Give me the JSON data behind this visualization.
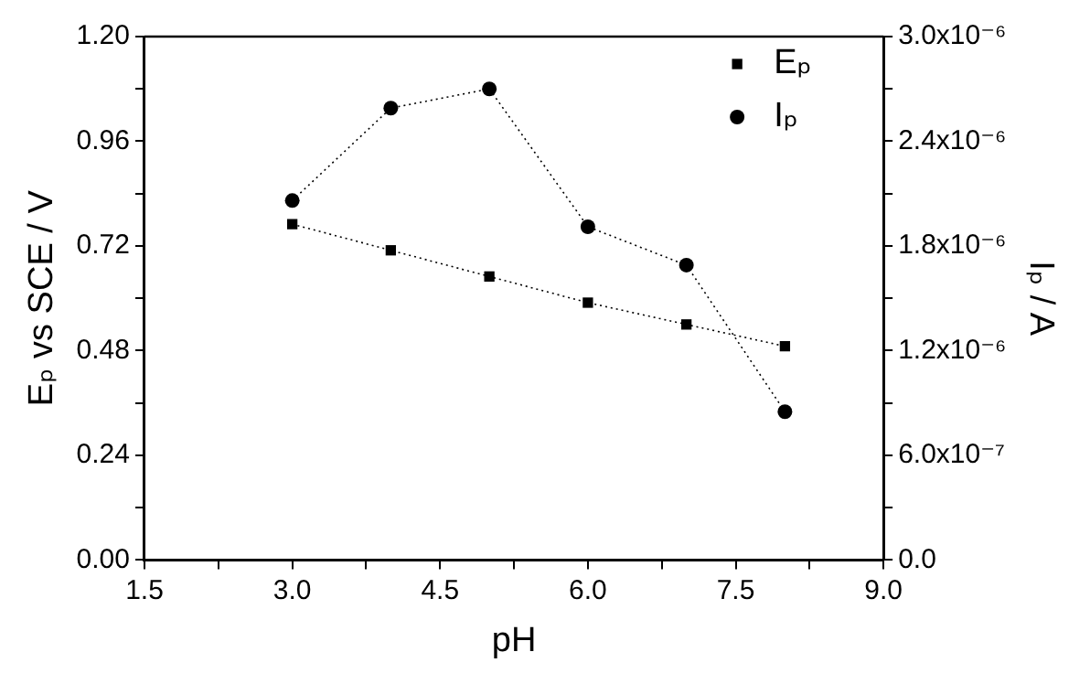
{
  "chart_data": {
    "type": "line",
    "xlabel": "pH",
    "ylabel": "Eₚ vs SCE / V",
    "y2label": "Iₚ / A",
    "x": [
      3,
      4,
      5,
      6,
      7,
      8
    ],
    "series": [
      {
        "name": "Eₚ",
        "color": "#000000",
        "marker": "square",
        "values": [
          0.77,
          0.71,
          0.65,
          0.59,
          0.54,
          0.49
        ]
      },
      {
        "name": "Iₚ",
        "color": "#000000",
        "marker": "circle",
        "axis": "y2",
        "values": [
          2.06e-06,
          2.59e-06,
          2.7e-06,
          1.91e-06,
          1.69e-06,
          8.5e-07
        ]
      }
    ],
    "xlim": [
      1.5,
      9.0
    ],
    "xticks": [
      {
        "value": 1.5,
        "label": "1.5"
      },
      {
        "value": 2.25,
        "label": null
      },
      {
        "value": 3,
        "label": "3.0"
      },
      {
        "value": 3.75,
        "label": null
      },
      {
        "value": 4.5,
        "label": "4.5"
      },
      {
        "value": 5.25,
        "label": null
      },
      {
        "value": 6,
        "label": "6.0"
      },
      {
        "value": 6.75,
        "label": null
      },
      {
        "value": 7.5,
        "label": "7.5"
      },
      {
        "value": 8.25,
        "label": null
      },
      {
        "value": 9,
        "label": "9.0"
      }
    ],
    "ylim": [
      0,
      1.2
    ],
    "yticks": [
      {
        "value": 0,
        "label": "0.00"
      },
      {
        "value": 0.12,
        "label": null
      },
      {
        "value": 0.24,
        "label": "0.24"
      },
      {
        "value": 0.36,
        "label": null
      },
      {
        "value": 0.48,
        "label": "0.48"
      },
      {
        "value": 0.6,
        "label": null
      },
      {
        "value": 0.72,
        "label": "0.72"
      },
      {
        "value": 0.84,
        "label": null
      },
      {
        "value": 0.96,
        "label": "0.96"
      },
      {
        "value": 1.08,
        "label": null
      },
      {
        "value": 1.2,
        "label": "1.20"
      }
    ],
    "y2lim": [
      0,
      3e-06
    ],
    "y2ticks": [
      {
        "value": 0,
        "label": "0.0"
      },
      {
        "value": 3e-07,
        "label": null
      },
      {
        "value": 6e-07,
        "label": "6.0x10⁻⁷"
      },
      {
        "value": 9e-07,
        "label": null
      },
      {
        "value": 1.2e-06,
        "label": "1.2x10⁻⁶"
      },
      {
        "value": 1.5e-06,
        "label": null
      },
      {
        "value": 1.8e-06,
        "label": "1.8x10⁻⁶"
      },
      {
        "value": 2.1e-06,
        "label": null
      },
      {
        "value": 2.4e-06,
        "label": "2.4x10⁻⁶"
      },
      {
        "value": 2.7e-06,
        "label": null
      },
      {
        "value": 3e-06,
        "label": "3.0x10⁻⁶"
      }
    ],
    "legend": "top right",
    "grid": false,
    "line_style": "dotted"
  }
}
